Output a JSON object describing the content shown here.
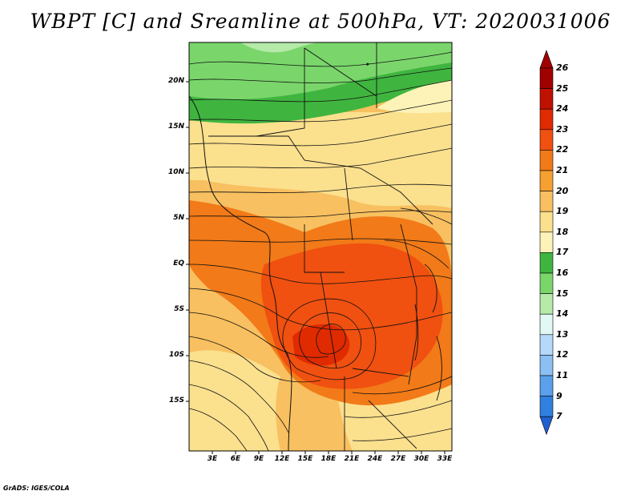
{
  "title": "WBPT [C] and Sreamline at 500hPa, VT: 2020031006",
  "credit": "GrADS: IGES/COLA",
  "map": {
    "variable": "Wet-bulb potential temperature",
    "units": "C",
    "level": "500hPa",
    "lat_range": [
      -20,
      24
    ],
    "lon_range": [
      0,
      35
    ],
    "lat_ticks": [
      {
        "value": 20,
        "label": "20N"
      },
      {
        "value": 15,
        "label": "15N"
      },
      {
        "value": 10,
        "label": "10N"
      },
      {
        "value": 5,
        "label": "5N"
      },
      {
        "value": 0,
        "label": "EQ"
      },
      {
        "value": -5,
        "label": "5S"
      },
      {
        "value": -10,
        "label": "10S"
      },
      {
        "value": -15,
        "label": "15S"
      }
    ],
    "lon_ticks": [
      {
        "value": 3,
        "label": "3E"
      },
      {
        "value": 6,
        "label": "6E"
      },
      {
        "value": 9,
        "label": "9E"
      },
      {
        "value": 12,
        "label": "12E"
      },
      {
        "value": 15,
        "label": "15E"
      },
      {
        "value": 18,
        "label": "18E"
      },
      {
        "value": 21,
        "label": "21E"
      },
      {
        "value": 24,
        "label": "24E"
      },
      {
        "value": 27,
        "label": "27E"
      },
      {
        "value": 30,
        "label": "30E"
      },
      {
        "value": 33,
        "label": "33E"
      }
    ]
  },
  "colorbar": {
    "levels": [
      {
        "label": "26",
        "color": "#a00000"
      },
      {
        "label": "25",
        "color": "#c01000"
      },
      {
        "label": "24",
        "color": "#e02a00"
      },
      {
        "label": "23",
        "color": "#f05010"
      },
      {
        "label": "22",
        "color": "#f27a18"
      },
      {
        "label": "21",
        "color": "#f5a030"
      },
      {
        "label": "20",
        "color": "#f8c060"
      },
      {
        "label": "19",
        "color": "#fbe08e"
      },
      {
        "label": "18",
        "color": "#fdf3b8"
      },
      {
        "label": "17",
        "color": "#3fb53f"
      },
      {
        "label": "16",
        "color": "#7ad66b"
      },
      {
        "label": "15",
        "color": "#b5eaa8"
      },
      {
        "label": "14",
        "color": "#e2f8f4"
      },
      {
        "label": "13",
        "color": "#b4d9fb"
      },
      {
        "label": "12",
        "color": "#8cc0f3"
      },
      {
        "label": "11",
        "color": "#5aa0eb"
      },
      {
        "label": "9",
        "color": "#3080e0"
      },
      {
        "label": "7",
        "color": "#1f66d8"
      }
    ],
    "under_color": "#1f5fd0"
  }
}
